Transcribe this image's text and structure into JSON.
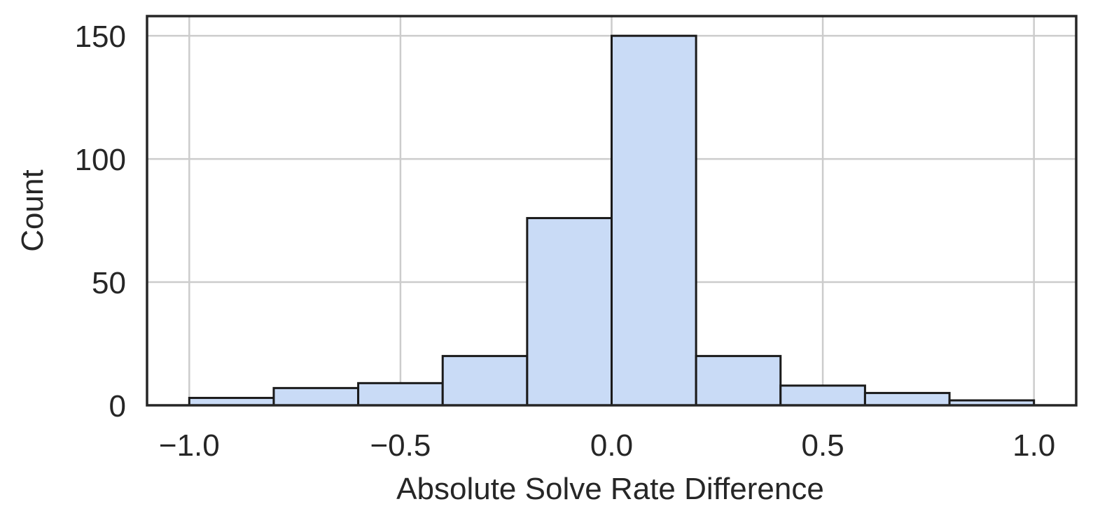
{
  "chart_data": {
    "type": "bar",
    "subtype": "histogram",
    "title": "",
    "xlabel": "Absolute Solve Rate Difference",
    "ylabel": "Count",
    "bin_edges": [
      -1.0,
      -0.8,
      -0.6,
      -0.4,
      -0.2,
      0.0,
      0.2,
      0.4,
      0.6,
      0.8,
      1.0
    ],
    "counts": [
      3,
      7,
      9,
      20,
      76,
      150,
      20,
      8,
      5,
      2
    ],
    "xlim": [
      -1.1,
      1.1
    ],
    "ylim": [
      0,
      158
    ],
    "x_ticks": [
      -1.0,
      -0.5,
      0.0,
      0.5,
      1.0
    ],
    "x_tick_labels": [
      "−1.0",
      "−0.5",
      "0.0",
      "0.5",
      "1.0"
    ],
    "y_ticks": [
      0,
      50,
      100,
      150
    ],
    "y_tick_labels": [
      "0",
      "50",
      "100",
      "150"
    ],
    "grid": true,
    "bar_color": "#c9dbf6",
    "edge_color": "#1a1a1a",
    "grid_color": "#cccccc"
  }
}
